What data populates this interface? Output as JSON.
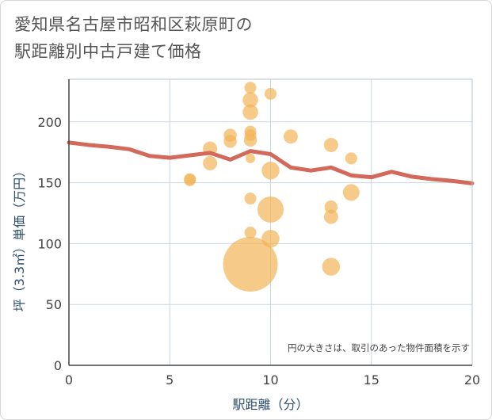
{
  "title": "愛知県名古屋市昭和区萩原町の\n駅距離別中古戸建て価格",
  "chart_data": {
    "type": "scatter",
    "title": "愛知県名古屋市昭和区萩原町の駅距離別中古戸建て価格",
    "xlabel": "駅距離（分）",
    "ylabel": "坪（3.3㎡）単価（万円）",
    "xlim": [
      0,
      20
    ],
    "ylim": [
      0,
      235
    ],
    "x_ticks": [
      0,
      5,
      10,
      15,
      20
    ],
    "y_ticks": [
      0,
      50,
      100,
      150,
      200
    ],
    "grid": true,
    "note": "円の大きさは、取引のあった物件面積を示す",
    "colors": {
      "bubble": "#f2b65a",
      "trend": "#d2695a",
      "grid": "#c9d6e0"
    },
    "bubbles": [
      {
        "x": 6,
        "y": 152,
        "size": 1
      },
      {
        "x": 6,
        "y": 153,
        "size": 1
      },
      {
        "x": 7,
        "y": 178,
        "size": 1.2
      },
      {
        "x": 7,
        "y": 166,
        "size": 1.2
      },
      {
        "x": 8,
        "y": 189,
        "size": 1.1
      },
      {
        "x": 8,
        "y": 184,
        "size": 1.1
      },
      {
        "x": 9,
        "y": 228,
        "size": 1
      },
      {
        "x": 9,
        "y": 218,
        "size": 1.3
      },
      {
        "x": 9,
        "y": 208,
        "size": 1.3
      },
      {
        "x": 9,
        "y": 192,
        "size": 1
      },
      {
        "x": 9,
        "y": 189,
        "size": 1
      },
      {
        "x": 9,
        "y": 185,
        "size": 1.1
      },
      {
        "x": 9,
        "y": 170,
        "size": 0.8
      },
      {
        "x": 9,
        "y": 137,
        "size": 1
      },
      {
        "x": 9,
        "y": 109,
        "size": 1
      },
      {
        "x": 9,
        "y": 83,
        "size": 4.6
      },
      {
        "x": 10,
        "y": 223,
        "size": 1
      },
      {
        "x": 10,
        "y": 160,
        "size": 1.5
      },
      {
        "x": 10,
        "y": 128,
        "size": 2.2
      },
      {
        "x": 10,
        "y": 104,
        "size": 1.5
      },
      {
        "x": 11,
        "y": 188,
        "size": 1.2
      },
      {
        "x": 13,
        "y": 181,
        "size": 1.2
      },
      {
        "x": 13,
        "y": 130,
        "size": 1.1
      },
      {
        "x": 13,
        "y": 122,
        "size": 1.2
      },
      {
        "x": 13,
        "y": 81,
        "size": 1.5
      },
      {
        "x": 14,
        "y": 170,
        "size": 1
      },
      {
        "x": 14,
        "y": 142,
        "size": 1.4
      }
    ],
    "series": [
      {
        "name": "trend",
        "x": [
          0,
          1,
          2,
          3,
          4,
          5,
          6,
          7,
          8,
          9,
          10,
          11,
          12,
          13,
          14,
          15,
          16,
          17,
          18,
          19,
          20
        ],
        "values": [
          183,
          181,
          179.5,
          177.5,
          172,
          170.5,
          172.5,
          174.5,
          169,
          176,
          173.5,
          162.5,
          160,
          162.5,
          156,
          154.5,
          159,
          155,
          153,
          151.5,
          149.5
        ]
      }
    ]
  }
}
